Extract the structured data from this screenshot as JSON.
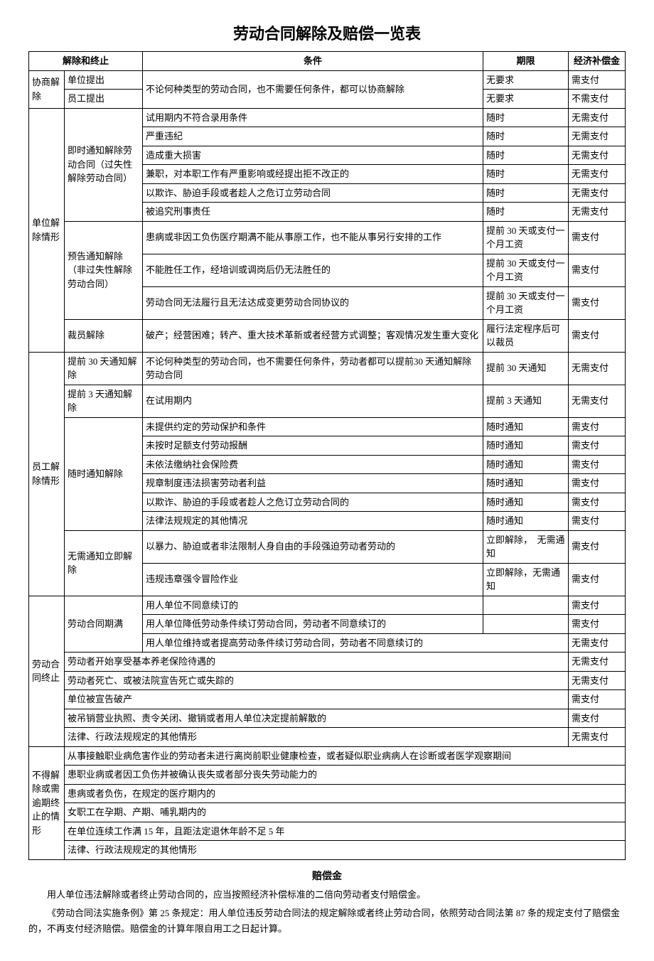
{
  "title": "劳动合同解除及赔偿一览表",
  "headers": {
    "c12": "解除和终止",
    "c3": "条件",
    "c4": "期限",
    "c5": "经济补偿金"
  },
  "sec1": {
    "label": "协商解除",
    "r1": {
      "a": "单位提出",
      "b_merged": "不论何种类型的劳动合同，也不需要任何条件，都可以协商解除",
      "c": "无要求",
      "d": "需支付"
    },
    "r2": {
      "a": "员工提出",
      "c": "无要求",
      "d": "不需支付"
    }
  },
  "sec2": {
    "label": "单位解除情形",
    "g1": {
      "label": "即时通知解除劳动合同（过失性解除劳动合同）",
      "r1": {
        "b": "试用期内不符合录用条件",
        "c": "随时",
        "d": "无需支付"
      },
      "r2": {
        "b": "严重违纪",
        "c": "随时",
        "d": "无需支付"
      },
      "r3": {
        "b": "造成重大损害",
        "c": "随时",
        "d": "无需支付"
      },
      "r4": {
        "b": "兼职，对本职工作有严重影响或经提出拒不改正的",
        "c": "随时",
        "d": "无需支付"
      },
      "r5": {
        "b": "以欺诈、胁迫手段或者趁人之危订立劳动合同",
        "c": "随时",
        "d": "无需支付"
      },
      "r6": {
        "b": "被追究刑事责任",
        "c": "随时",
        "d": "无需支付"
      }
    },
    "g2": {
      "label": "预告通知解除（非过失性解除劳动合同）",
      "r1": {
        "b": "患病或非因工负伤医疗期满不能从事原工作，也不能从事另行安排的工作",
        "c": "提前 30 天或支付一个月工资",
        "d": "需支付"
      },
      "r2": {
        "b": "不能胜任工作，经培训或调岗后仍无法胜任的",
        "c": "提前 30 天或支付一个月工资",
        "d": "需支付"
      },
      "r3": {
        "b": "劳动合同无法履行且无法达成变更劳动合同协议的",
        "c": "提前 30 天或支付一个月工资",
        "d": "需支付"
      }
    },
    "g3": {
      "label": "裁员解除",
      "r1": {
        "b": "破产；经营困难；转产、重大技术革新或者经营方式调整；客观情况发生重大变化",
        "c": "履行法定程序后可以裁员",
        "d": "需支付"
      }
    }
  },
  "sec3": {
    "label": "员工解除情形",
    "g1": {
      "label": "提前 30 天通知解除",
      "r1": {
        "b": "不论何种类型的劳动合同，也不需要任何条件，劳动者都可以提前30 天通知解除劳动合同",
        "c": "提前 30 天通知",
        "d": "无需支付"
      }
    },
    "g2": {
      "label": "提前 3 天通知解除",
      "r1": {
        "b": "在试用期内",
        "c": "提前 3 天通知",
        "d": "无需支付"
      }
    },
    "g3": {
      "label": "随时通知解除",
      "r1": {
        "b": "未提供约定的劳动保护和条件",
        "c": "随时通知",
        "d": "需支付"
      },
      "r2": {
        "b": "未按时足额支付劳动报酬",
        "c": "随时通知",
        "d": "需支付"
      },
      "r3": {
        "b": "未依法缴纳社会保险费",
        "c": "随时通知",
        "d": "需支付"
      },
      "r4": {
        "b": "规章制度违法损害劳动者利益",
        "c": "随时通知",
        "d": "需支付"
      },
      "r5": {
        "b": "以欺诈、胁迫的手段或者趁人之危订立劳动合同的",
        "c": "随时通知",
        "d": "需支付"
      },
      "r6": {
        "b": "法律法规规定的其他情况",
        "c": "随时通知",
        "d": "需支付"
      }
    },
    "g4": {
      "label": "无需通知立即解除",
      "r1": {
        "b": "以暴力、胁迫或者非法限制人身自由的手段强迫劳动者劳动的",
        "c": "立即解除，　无需通知",
        "d": "需支付"
      },
      "r2": {
        "b": "违规违章强令冒险作业",
        "c": "立即解除，无需通知",
        "d": "需支付"
      }
    }
  },
  "sec4": {
    "label": "劳动合同终止",
    "g1": {
      "label": "劳动合同期满",
      "r1": {
        "b": "用人单位不同意续订的",
        "c": "",
        "d": "需支付"
      },
      "r2": {
        "b": "用人单位降低劳动条件续订劳动合同，劳动者不同意续订的",
        "c": "",
        "d": "需支付"
      },
      "r3": {
        "b": "用人单位维持或者提高劳动条件续订劳动合同，劳动者不同意续订的",
        "c": "",
        "d": "无需支付"
      }
    },
    "r4": {
      "a": "劳动者开始享受基本养老保险待遇的",
      "d": "无需支付"
    },
    "r5": {
      "a": "劳动者死亡、或被法院宣告死亡或失踪的",
      "d": "无需支付"
    },
    "r6": {
      "a": "单位被宣告破产",
      "d": "需支付"
    },
    "r7": {
      "a": "被吊销营业执照、责令关闭、撤销或者用人单位决定提前解散的",
      "d": "需支付"
    },
    "r8": {
      "a": "法律、行政法规规定的其他情形",
      "d": "无需支付"
    }
  },
  "sec5": {
    "label": "不得解除或需逾期终止的情形",
    "r1": "从事接触职业病危害作业的劳动者未进行离岗前职业健康检查，或者疑似职业病病人在诊断或者医学观察期间",
    "r2": "患职业病或者因工负伤并被确认丧失或者部分丧失劳动能力的",
    "r3": "患病或者负伤，在规定的医疗期内的",
    "r4": "女职工在孕期、产期、哺乳期内的",
    "r5": "在单位连续工作满 15 年，且距法定退休年龄不足 5 年",
    "r6": "法律、行政法规规定的其他情形"
  },
  "footer": {
    "heading": "赔偿金",
    "p1": "用人单位违法解除或者终止劳动合同的，应当按照经济补偿标准的二倍向劳动者支付赔偿金。",
    "p2": "《劳动合同法实施条例》第 25 条规定：用人单位违反劳动合同法的规定解除或者终止劳动合同，依照劳动合同法第 87 条的规定支付了赔偿金的，不再支付经济赔偿。赔偿金的计算年限自用工之日起计算。"
  }
}
